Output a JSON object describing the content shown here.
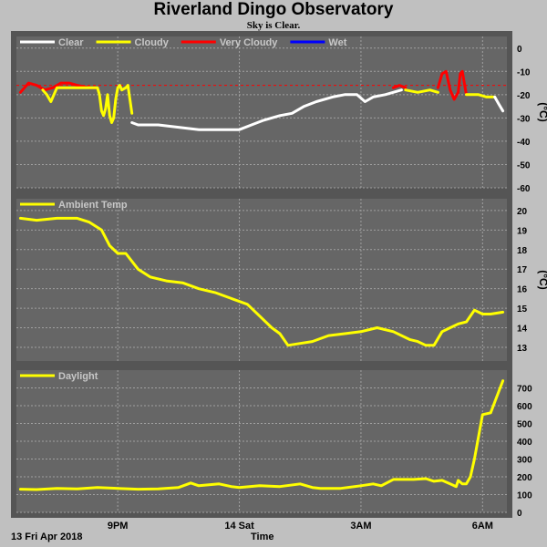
{
  "title": "Riverland Dingo Observatory",
  "subtitle": "Sky is Clear.",
  "footer": {
    "date": "13 Fri Apr 2018",
    "xlabel": "Time"
  },
  "colors": {
    "panel_bg": "#666666",
    "frame": "#c0c0c0",
    "grid": "#a0a0a0",
    "clear": "#ffffff",
    "cloudy": "#ffff00",
    "very_cloudy": "#ff0000",
    "wet": "#0000ff",
    "ambient": "#ffff00",
    "daylight": "#ffff00",
    "threshold": "#ff0000"
  },
  "chart_data": [
    {
      "type": "line",
      "legend": [
        {
          "name": "Clear",
          "color": "#ffffff"
        },
        {
          "name": "Cloudy",
          "color": "#ffff00"
        },
        {
          "name": "Very Cloudy",
          "color": "#ff0000"
        },
        {
          "name": "Wet",
          "color": "#0000ff"
        }
      ],
      "ylabel": "(°C)",
      "ylim": [
        -60,
        5
      ],
      "yticks": [
        "0",
        "-10",
        "-20",
        "-30",
        "-40",
        "-50",
        "-60"
      ],
      "xlim": [
        18.5,
        30.6
      ],
      "threshold": -16,
      "series": [
        {
          "name": "Very Cloudy",
          "color": "#ff0000",
          "x": [
            18.6,
            18.8,
            19.0,
            19.2,
            19.4,
            19.6,
            19.8,
            20.0,
            20.3,
            20.5
          ],
          "y": [
            -19,
            -15,
            -16,
            -18,
            -17,
            -15,
            -15,
            -16,
            -17,
            -17
          ]
        },
        {
          "name": "Cloudy",
          "color": "#ffff00",
          "x": [
            19.15,
            19.25,
            19.35,
            19.5,
            20.5,
            20.55,
            20.6,
            20.65,
            20.7,
            20.75,
            20.8,
            20.85,
            20.9,
            20.95,
            21.0,
            21.05,
            21.1,
            21.2,
            21.25,
            21.3,
            21.35
          ],
          "y": [
            -18,
            -20,
            -23,
            -17,
            -17,
            -20,
            -27,
            -29,
            -26,
            -20,
            -29,
            -32,
            -30,
            -22,
            -17,
            -16,
            -18,
            -17,
            -16,
            -22,
            -28
          ]
        },
        {
          "name": "Clear",
          "color": "#ffffff",
          "x": [
            21.35,
            21.5,
            22.0,
            22.5,
            23.0,
            23.5,
            24.0,
            24.3,
            24.6,
            25.0,
            25.3,
            25.6,
            25.9,
            26.3,
            26.6,
            26.9,
            27.1,
            27.3,
            27.6,
            28.0
          ],
          "y": [
            -32,
            -33,
            -33,
            -34,
            -35,
            -35,
            -35,
            -33,
            -31,
            -29,
            -28,
            -25,
            -23,
            -21,
            -20,
            -20,
            -23,
            -21,
            -20,
            -18
          ]
        },
        {
          "name": "Very Cloudy",
          "color": "#ff0000",
          "x": [
            27.8,
            27.95,
            28.1
          ],
          "y": [
            -17,
            -16,
            -17
          ]
        },
        {
          "name": "Cloudy",
          "color": "#ffff00",
          "x": [
            28.1,
            28.4,
            28.7,
            28.9
          ],
          "y": [
            -18,
            -19,
            -18,
            -19
          ]
        },
        {
          "name": "Very Cloudy",
          "color": "#ff0000",
          "x": [
            28.9,
            29.0,
            29.1,
            29.2,
            29.3,
            29.4
          ],
          "y": [
            -17,
            -11,
            -10,
            -18,
            -22,
            -19
          ]
        },
        {
          "name": "Very Cloudy",
          "color": "#ff0000",
          "x": [
            29.4,
            29.45,
            29.5,
            29.55,
            29.6
          ],
          "y": [
            -19,
            -11,
            -10,
            -15,
            -20
          ]
        },
        {
          "name": "Cloudy",
          "color": "#ffff00",
          "x": [
            29.6,
            29.7,
            29.9,
            30.1,
            30.3
          ],
          "y": [
            -20,
            -20,
            -20,
            -21,
            -21
          ]
        },
        {
          "name": "Clear",
          "color": "#ffffff",
          "x": [
            30.3,
            30.4,
            30.5
          ],
          "y": [
            -21,
            -24,
            -27
          ]
        }
      ],
      "xticks": [
        21,
        24,
        27,
        30
      ]
    },
    {
      "type": "line",
      "legend": [
        {
          "name": "Ambient Temp",
          "color": "#ffff00"
        }
      ],
      "ylabel": "(°C)",
      "ylim": [
        12.3,
        20.6
      ],
      "yticks": [
        "20",
        "19",
        "18",
        "17",
        "16",
        "15",
        "14",
        "13"
      ],
      "xlim": [
        18.5,
        30.6
      ],
      "series": [
        {
          "name": "Ambient Temp",
          "color": "#ffff00",
          "x": [
            18.6,
            19.0,
            19.5,
            20.0,
            20.3,
            20.6,
            20.8,
            21.0,
            21.2,
            21.5,
            21.8,
            22.2,
            22.6,
            23.0,
            23.4,
            23.8,
            24.2,
            24.5,
            24.8,
            25.0,
            25.2,
            25.5,
            25.8,
            26.2,
            26.6,
            27.0,
            27.4,
            27.8,
            28.2,
            28.4,
            28.6,
            28.8,
            29.0,
            29.2,
            29.4,
            29.6,
            29.8,
            30.0,
            30.2,
            30.5
          ],
          "y": [
            19.6,
            19.5,
            19.6,
            19.6,
            19.4,
            19.0,
            18.2,
            17.8,
            17.8,
            17.0,
            16.6,
            16.4,
            16.3,
            16.0,
            15.8,
            15.5,
            15.2,
            14.6,
            14.0,
            13.7,
            13.1,
            13.2,
            13.3,
            13.6,
            13.7,
            13.8,
            14.0,
            13.8,
            13.4,
            13.3,
            13.1,
            13.1,
            13.8,
            14.0,
            14.2,
            14.3,
            14.9,
            14.7,
            14.7,
            14.8
          ]
        }
      ],
      "xticks": [
        21,
        24,
        27,
        30
      ]
    },
    {
      "type": "line",
      "legend": [
        {
          "name": "Daylight",
          "color": "#ffff00"
        }
      ],
      "ylim": [
        0,
        800
      ],
      "yticks": [
        "700",
        "600",
        "500",
        "400",
        "300",
        "200",
        "100",
        "0"
      ],
      "xlim": [
        18.5,
        30.6
      ],
      "xticklabels": [
        "9PM",
        "14 Sat",
        "3AM",
        "6AM"
      ],
      "series": [
        {
          "name": "Daylight",
          "color": "#ffff00",
          "x": [
            18.6,
            19.0,
            19.5,
            20.0,
            20.5,
            21.0,
            21.5,
            22.0,
            22.5,
            22.8,
            23.0,
            23.5,
            23.8,
            24.0,
            24.5,
            25.0,
            25.5,
            25.8,
            26.0,
            26.5,
            27.0,
            27.3,
            27.5,
            27.8,
            28.0,
            28.3,
            28.6,
            28.8,
            29.0,
            29.2,
            29.3,
            29.35,
            29.4,
            29.5,
            29.6,
            29.7,
            29.8,
            30.0,
            30.2,
            30.4,
            30.5
          ],
          "y": [
            130,
            128,
            135,
            132,
            140,
            135,
            130,
            132,
            140,
            165,
            150,
            160,
            145,
            140,
            150,
            145,
            160,
            140,
            135,
            135,
            150,
            160,
            150,
            185,
            185,
            185,
            190,
            175,
            180,
            160,
            150,
            145,
            180,
            160,
            160,
            200,
            300,
            550,
            560,
            680,
            740
          ]
        }
      ],
      "xticks": [
        21,
        24,
        27,
        30
      ]
    }
  ]
}
